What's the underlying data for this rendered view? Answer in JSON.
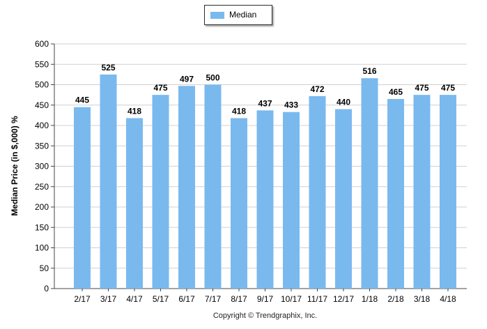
{
  "legend": {
    "label": "Median"
  },
  "copyright": "Copyright © Trendgraphix, Inc.",
  "colors": {
    "bar": "#7ab9ee",
    "grid": "#d0d0d0",
    "axis": "#444444"
  },
  "chart_data": {
    "type": "bar",
    "ylabel": "Median Price (in $,000) %",
    "xlabel": "",
    "categories": [
      "2/17",
      "3/17",
      "4/17",
      "5/17",
      "6/17",
      "7/17",
      "8/17",
      "9/17",
      "10/17",
      "11/17",
      "12/17",
      "1/18",
      "2/18",
      "3/18",
      "4/18"
    ],
    "series": [
      {
        "name": "Median",
        "values": [
          445,
          525,
          418,
          475,
          497,
          500,
          418,
          437,
          433,
          472,
          440,
          516,
          465,
          475,
          475
        ]
      }
    ],
    "ylim": [
      0,
      600
    ],
    "yticks": [
      0,
      50,
      100,
      150,
      200,
      250,
      300,
      350,
      400,
      450,
      500,
      550,
      600
    ],
    "grid": true,
    "legend_position": "top-center"
  }
}
